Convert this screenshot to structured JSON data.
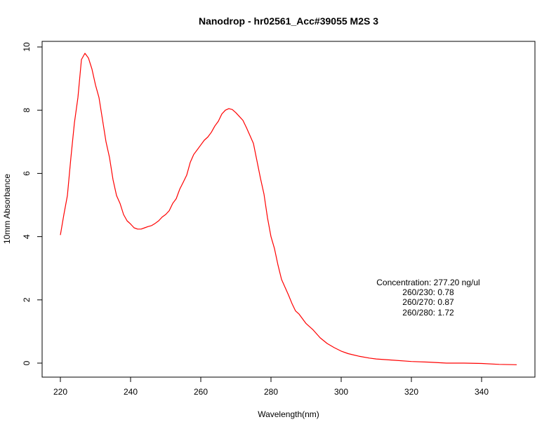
{
  "chart_data": {
    "type": "line",
    "title": "Nanodrop - hr02561_Acc#39055 M2S 3",
    "xlabel": "Wavelength(nm)",
    "ylabel": "10mm Absorbance",
    "xlim": [
      220,
      350
    ],
    "ylim": [
      0,
      10
    ],
    "x_ticks": [
      220,
      240,
      260,
      280,
      300,
      320,
      340
    ],
    "x_tick_labels": [
      "220",
      "240",
      "260",
      "280",
      "300",
      "320",
      "340"
    ],
    "y_ticks": [
      0,
      2,
      4,
      6,
      8,
      10
    ],
    "y_tick_labels": [
      "0",
      "2",
      "4",
      "6",
      "8",
      "10"
    ],
    "grid": false,
    "line_color": "#ff0000",
    "series": [
      {
        "x": [
          220,
          221,
          222,
          223,
          224,
          225,
          226,
          227,
          228,
          229,
          230,
          231,
          232,
          233,
          234,
          235,
          236,
          237,
          238,
          239,
          240,
          241,
          242,
          243,
          244,
          245,
          246,
          247,
          248,
          249,
          250,
          251,
          252,
          253,
          254,
          255,
          256,
          257,
          258,
          259,
          260,
          261,
          262,
          263,
          264,
          265,
          266,
          267,
          268,
          269,
          270,
          271,
          272,
          273,
          274,
          275,
          276,
          277,
          278,
          279,
          280,
          281,
          282,
          283,
          284,
          285,
          286,
          287,
          288,
          289,
          290,
          292,
          294,
          296,
          298,
          300,
          302,
          305,
          308,
          310,
          315,
          320,
          325,
          330,
          335,
          340,
          345,
          350
        ],
        "y": [
          4.05,
          4.7,
          5.3,
          6.5,
          7.6,
          8.4,
          9.6,
          9.8,
          9.65,
          9.3,
          8.8,
          8.4,
          7.7,
          7.0,
          6.5,
          5.8,
          5.3,
          5.05,
          4.7,
          4.5,
          4.4,
          4.28,
          4.24,
          4.24,
          4.28,
          4.32,
          4.35,
          4.42,
          4.5,
          4.62,
          4.7,
          4.82,
          5.05,
          5.2,
          5.5,
          5.72,
          5.95,
          6.35,
          6.6,
          6.75,
          6.9,
          7.05,
          7.15,
          7.3,
          7.5,
          7.65,
          7.88,
          8.0,
          8.05,
          8.02,
          7.92,
          7.8,
          7.68,
          7.45,
          7.2,
          6.95,
          6.4,
          5.85,
          5.35,
          4.6,
          4.0,
          3.62,
          3.1,
          2.65,
          2.4,
          2.15,
          1.88,
          1.65,
          1.55,
          1.4,
          1.25,
          1.05,
          0.8,
          0.62,
          0.49,
          0.38,
          0.3,
          0.22,
          0.16,
          0.13,
          0.09,
          0.05,
          0.03,
          0.0,
          0.0,
          -0.01,
          -0.04,
          -0.05
        ]
      }
    ],
    "annotation": {
      "lines": [
        "Concentration: 277.20 ng/ul",
        "260/230: 0.78",
        "260/270: 0.87",
        "260/280: 1.72"
      ]
    }
  }
}
